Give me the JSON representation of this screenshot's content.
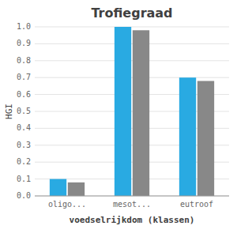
{
  "chart_data": {
    "type": "bar",
    "title": "Trofiegraad",
    "xlabel": "voedselrijkdom (klassen)",
    "ylabel": "HGI",
    "categories": [
      "oligo...",
      "mesot...",
      "eutroof"
    ],
    "series": [
      {
        "color": "#29aae2",
        "values": [
          0.1,
          1.0,
          0.7
        ]
      },
      {
        "color": "#888888",
        "values": [
          0.08,
          0.98,
          0.68
        ]
      }
    ],
    "ylim": [
      0.0,
      1.0
    ],
    "yticks": [
      {
        "value": 0.0,
        "label": "0.0"
      },
      0.1,
      0.2,
      0.3,
      0.4,
      0.5,
      0.6,
      0.7,
      0.8,
      0.9,
      {
        "value": 1.0,
        "label": "1.0"
      }
    ],
    "grid": true
  }
}
